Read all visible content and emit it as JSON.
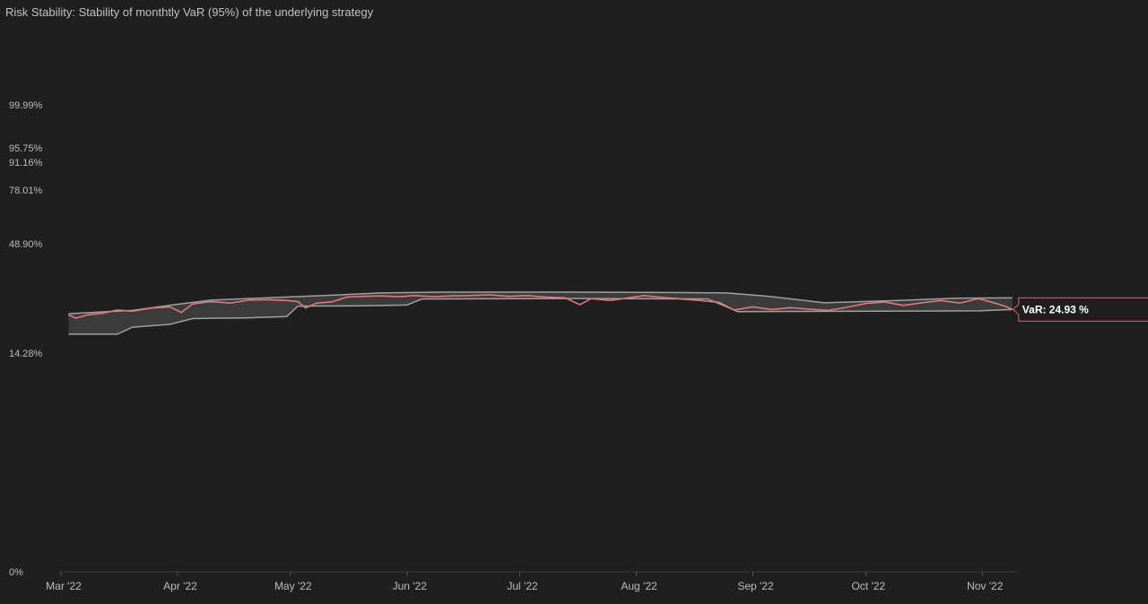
{
  "chart_data": {
    "type": "area",
    "title": "Risk Stability: Stability of monthtly VaR (95%) of the underlying strategy",
    "y_tick_labels": [
      "99.99%",
      "95.75%",
      "91.16%",
      "78.01%",
      "48.90%",
      "14.28%",
      "0%"
    ],
    "x_tick_labels": [
      "Mar '22",
      "Apr '22",
      "May '22",
      "Jun '22",
      "Jul '22",
      "Aug '22",
      "Sep '22",
      "Oct '22",
      "Nov '22"
    ],
    "x_range": [
      "2022-03-01",
      "2022-11-10"
    ],
    "series": [
      {
        "name": "VaR",
        "color": "#e07a7a",
        "points": [
          [
            "2022-03-03",
            23.6
          ],
          [
            "2022-03-05",
            22.8
          ],
          [
            "2022-03-08",
            23.6
          ],
          [
            "2022-03-12",
            24.0
          ],
          [
            "2022-03-16",
            24.8
          ],
          [
            "2022-03-20",
            24.5
          ],
          [
            "2022-03-25",
            25.3
          ],
          [
            "2022-03-30",
            25.6
          ],
          [
            "2022-04-02",
            24.2
          ],
          [
            "2022-04-05",
            26.4
          ],
          [
            "2022-04-10",
            27.0
          ],
          [
            "2022-04-15",
            26.6
          ],
          [
            "2022-04-20",
            27.4
          ],
          [
            "2022-04-25",
            27.5
          ],
          [
            "2022-04-30",
            27.3
          ],
          [
            "2022-05-03",
            27.0
          ],
          [
            "2022-05-05",
            25.3
          ],
          [
            "2022-05-08",
            26.6
          ],
          [
            "2022-05-12",
            26.9
          ],
          [
            "2022-05-16",
            28.2
          ],
          [
            "2022-05-20",
            28.4
          ],
          [
            "2022-05-25",
            28.5
          ],
          [
            "2022-05-30",
            28.3
          ],
          [
            "2022-06-03",
            28.6
          ],
          [
            "2022-06-08",
            28.3
          ],
          [
            "2022-06-13",
            28.5
          ],
          [
            "2022-06-18",
            28.6
          ],
          [
            "2022-06-23",
            28.8
          ],
          [
            "2022-06-28",
            28.4
          ],
          [
            "2022-07-03",
            28.6
          ],
          [
            "2022-07-08",
            28.2
          ],
          [
            "2022-07-13",
            28.0
          ],
          [
            "2022-07-17",
            26.2
          ],
          [
            "2022-07-20",
            27.8
          ],
          [
            "2022-07-25",
            27.3
          ],
          [
            "2022-07-30",
            28.0
          ],
          [
            "2022-08-03",
            28.6
          ],
          [
            "2022-08-08",
            28.1
          ],
          [
            "2022-08-13",
            27.7
          ],
          [
            "2022-08-18",
            27.3
          ],
          [
            "2022-08-23",
            26.8
          ],
          [
            "2022-08-27",
            24.8
          ],
          [
            "2022-09-01",
            25.6
          ],
          [
            "2022-09-06",
            24.9
          ],
          [
            "2022-09-11",
            25.4
          ],
          [
            "2022-09-16",
            25.0
          ],
          [
            "2022-09-21",
            24.7
          ],
          [
            "2022-09-26",
            25.5
          ],
          [
            "2022-10-01",
            26.5
          ],
          [
            "2022-10-06",
            26.9
          ],
          [
            "2022-10-11",
            26.0
          ],
          [
            "2022-10-16",
            26.7
          ],
          [
            "2022-10-21",
            27.3
          ],
          [
            "2022-10-26",
            26.6
          ],
          [
            "2022-10-31",
            27.8
          ],
          [
            "2022-11-04",
            26.7
          ],
          [
            "2022-11-07",
            25.8
          ],
          [
            "2022-11-09",
            24.93
          ]
        ]
      }
    ],
    "band": {
      "color": "#a0a0a0",
      "fill": "#3b3b3b",
      "upper": [
        [
          "2022-03-03",
          23.9
        ],
        [
          "2022-03-20",
          24.7
        ],
        [
          "2022-04-01",
          26.3
        ],
        [
          "2022-04-10",
          27.4
        ],
        [
          "2022-04-20",
          27.8
        ],
        [
          "2022-05-10",
          28.6
        ],
        [
          "2022-05-25",
          29.3
        ],
        [
          "2022-06-10",
          29.5
        ],
        [
          "2022-07-15",
          29.5
        ],
        [
          "2022-08-10",
          29.4
        ],
        [
          "2022-08-25",
          29.3
        ],
        [
          "2022-09-05",
          28.4
        ],
        [
          "2022-09-20",
          26.7
        ],
        [
          "2022-10-10",
          27.3
        ],
        [
          "2022-10-25",
          27.9
        ],
        [
          "2022-11-09",
          28.0
        ]
      ],
      "lower": [
        [
          "2022-03-03",
          18.9
        ],
        [
          "2022-03-16",
          18.9
        ],
        [
          "2022-03-20",
          20.6
        ],
        [
          "2022-03-30",
          21.3
        ],
        [
          "2022-04-05",
          22.7
        ],
        [
          "2022-04-20",
          22.9
        ],
        [
          "2022-04-30",
          23.2
        ],
        [
          "2022-05-03",
          25.8
        ],
        [
          "2022-05-20",
          25.9
        ],
        [
          "2022-06-01",
          26.1
        ],
        [
          "2022-06-05",
          27.7
        ],
        [
          "2022-07-15",
          27.8
        ],
        [
          "2022-08-20",
          27.7
        ],
        [
          "2022-08-28",
          24.4
        ],
        [
          "2022-10-31",
          24.6
        ],
        [
          "2022-11-09",
          24.93
        ]
      ]
    },
    "annotation": {
      "label": "VaR: 24.93 %",
      "value": 24.93,
      "border_color": "#d06a6a"
    }
  }
}
